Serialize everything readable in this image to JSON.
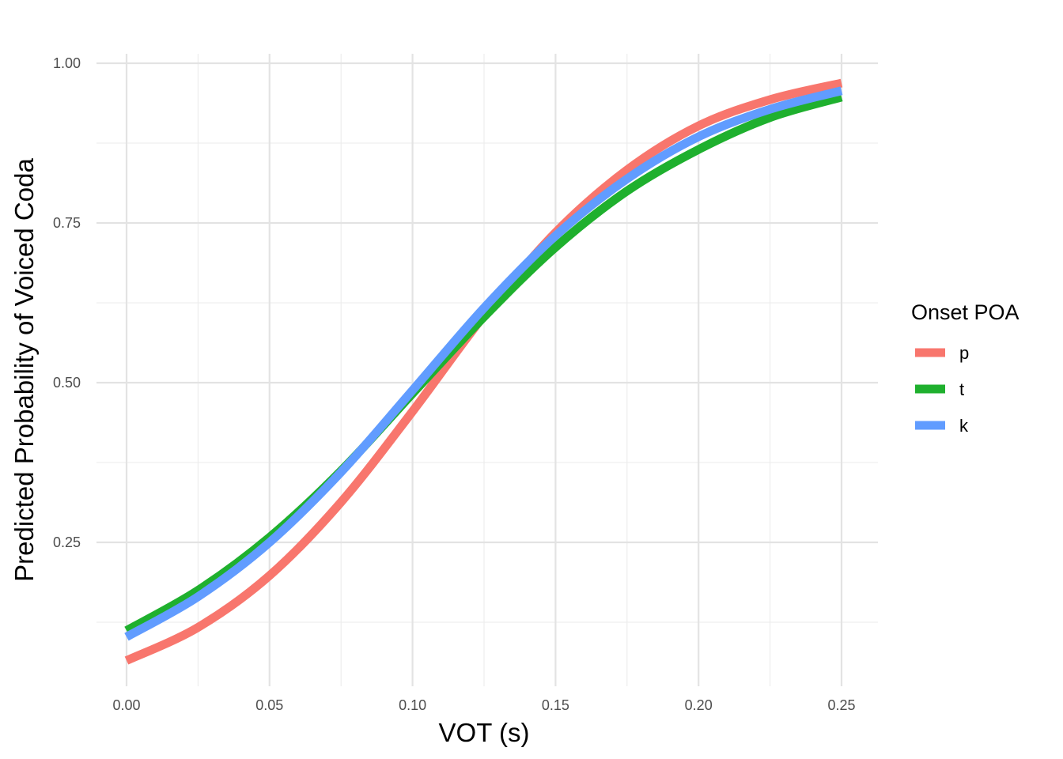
{
  "chart_data": {
    "type": "line",
    "title": "",
    "xlabel": "VOT (s)",
    "ylabel": "Predicted Probability of Voiced Coda",
    "xlim": [
      0,
      0.25
    ],
    "ylim": [
      0.06,
      1.0
    ],
    "x_ticks": [
      "0.00",
      "0.05",
      "0.10",
      "0.15",
      "0.20",
      "0.25"
    ],
    "y_ticks": [
      "0.25",
      "0.50",
      "0.75",
      "1.00"
    ],
    "grid": true,
    "legend": {
      "title": "Onset POA",
      "position": "right"
    },
    "x": [
      0.0,
      0.025,
      0.05,
      0.075,
      0.1,
      0.125,
      0.15,
      0.175,
      0.2,
      0.225,
      0.25
    ],
    "series": [
      {
        "name": "p",
        "color": "#F8766D",
        "values": [
          0.065,
          0.117,
          0.198,
          0.313,
          0.455,
          0.605,
          0.735,
          0.833,
          0.902,
          0.943,
          0.969
        ]
      },
      {
        "name": "t",
        "color": "#1FB02E",
        "values": [
          0.112,
          0.175,
          0.258,
          0.362,
          0.483,
          0.603,
          0.712,
          0.8,
          0.865,
          0.915,
          0.947
        ]
      },
      {
        "name": "k",
        "color": "#619CFF",
        "values": [
          0.102,
          0.165,
          0.25,
          0.36,
          0.488,
          0.617,
          0.73,
          0.819,
          0.885,
          0.928,
          0.957
        ]
      }
    ]
  }
}
